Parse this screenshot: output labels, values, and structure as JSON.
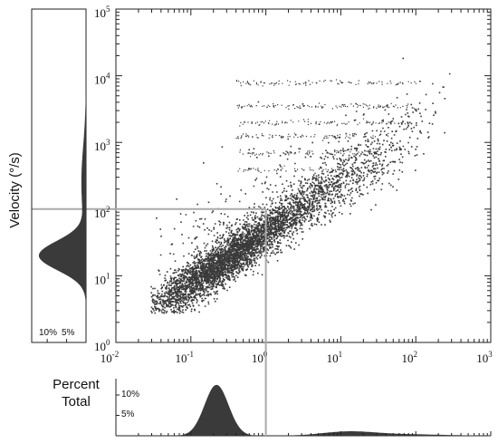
{
  "chart_data": {
    "type": "scatter",
    "title": "",
    "xlabel": "",
    "ylabel": "Velocity (°/s)",
    "x_scale": "log",
    "y_scale": "log",
    "xlim": [
      0.01,
      1000
    ],
    "ylim": [
      1,
      100000
    ],
    "x_ticks": [
      {
        "base": "10",
        "exp": "-2"
      },
      {
        "base": "10",
        "exp": "-1"
      },
      {
        "base": "10",
        "exp": "0"
      },
      {
        "base": "10",
        "exp": "1"
      },
      {
        "base": "10",
        "exp": "2"
      },
      {
        "base": "10",
        "exp": "3"
      }
    ],
    "y_ticks": [
      {
        "base": "10",
        "exp": "0"
      },
      {
        "base": "10",
        "exp": "1"
      },
      {
        "base": "10",
        "exp": "2"
      },
      {
        "base": "10",
        "exp": "3"
      },
      {
        "base": "10",
        "exp": "4"
      },
      {
        "base": "10",
        "exp": "5"
      }
    ],
    "reference_lines": {
      "x": 1,
      "y": 100,
      "color": "#aaaaaa"
    },
    "point_color": "#3a3a3a",
    "density_ridge": [
      {
        "x": 0.03,
        "y": 3.2
      },
      {
        "x": 0.1,
        "y": 8
      },
      {
        "x": 0.3,
        "y": 18
      },
      {
        "x": 1,
        "y": 45
      },
      {
        "x": 3,
        "y": 110
      },
      {
        "x": 10,
        "y": 260
      },
      {
        "x": 30,
        "y": 600
      },
      {
        "x": 100,
        "y": 1500
      },
      {
        "x": 250,
        "y": 6000
      }
    ],
    "marginal_x": {
      "label_line1": "Percent",
      "label_line2": "Total",
      "ticks": [
        "10%",
        "5%"
      ],
      "tick_values": [
        10,
        5
      ],
      "peak_x": 0.22,
      "peak_percent": 12.5
    },
    "marginal_y": {
      "ticks": [
        "10%",
        "5%"
      ],
      "tick_values": [
        10,
        5
      ],
      "peak_y": 20,
      "peak_percent": 12
    }
  }
}
